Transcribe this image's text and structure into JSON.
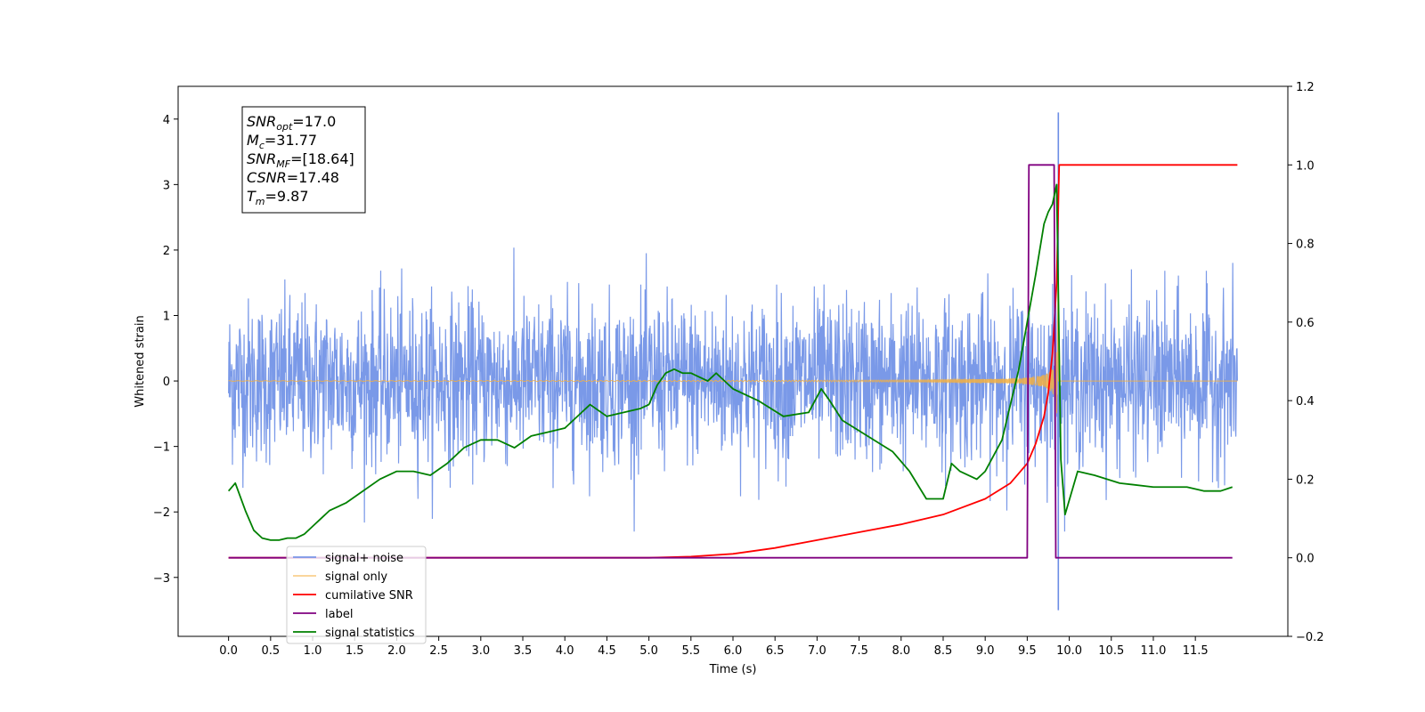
{
  "chart_data": {
    "type": "line",
    "title": "",
    "xlabel": "Time (s)",
    "ylabel": "Whitened strain",
    "xlim": [
      -0.6,
      12.6
    ],
    "ylim": [
      -3.9,
      4.5
    ],
    "y2lim": [
      -0.2,
      1.2
    ],
    "grid": false,
    "legend_location": "lower-left",
    "x_ticks": [
      "0.0",
      "0.5",
      "1.0",
      "1.5",
      "2.0",
      "2.5",
      "3.0",
      "3.5",
      "4.0",
      "4.5",
      "5.0",
      "5.5",
      "6.0",
      "6.5",
      "7.0",
      "7.5",
      "8.0",
      "8.5",
      "9.0",
      "9.5",
      "10.0",
      "10.5",
      "11.0",
      "11.5"
    ],
    "y_ticks": [
      "4",
      "3",
      "2",
      "1",
      "0",
      "−1",
      "−2",
      "−3"
    ],
    "y2_ticks": [
      "1.2",
      "1.0",
      "0.8",
      "0.6",
      "0.4",
      "0.2",
      "0.0",
      "−0.2"
    ],
    "annotation": {
      "lines": [
        {
          "base": "SNR",
          "sub": "opt",
          "value": "=17.0"
        },
        {
          "base": "M",
          "sub": "c",
          "value": "=31.77"
        },
        {
          "base": "SNR",
          "sub": "MF",
          "value": "=[18.64]"
        },
        {
          "base": "CSNR",
          "sub": "",
          "value": "=17.48"
        },
        {
          "base": "T",
          "sub": "m",
          "value": "=9.87"
        }
      ]
    },
    "colors": {
      "signal_noise": "#6b8ee6",
      "signal_only": "#f5b041",
      "cumulative_snr": "#ff0000",
      "label": "#800080",
      "signal_statistics": "#008000"
    },
    "series": [
      {
        "name": "signal+ noise",
        "axis": "left",
        "description_values": {
          "t_start": 0.0,
          "t_end": 12.0,
          "amplitude_envelope": 1.6,
          "max": 4.1,
          "min": -3.5
        }
      },
      {
        "name": "signal only",
        "axis": "left",
        "description_values": {
          "t_start": 0.0,
          "t_end": 12.0,
          "merger_time": 9.87,
          "peak_amplitude": 1.6
        }
      },
      {
        "name": "cumilative SNR",
        "axis": "right",
        "x": [
          0.0,
          5.0,
          5.5,
          6.0,
          6.5,
          7.0,
          7.5,
          8.0,
          8.5,
          9.0,
          9.3,
          9.5,
          9.6,
          9.7,
          9.75,
          9.8,
          9.85,
          9.87,
          9.88,
          12.0
        ],
        "y": [
          0.0,
          0.0,
          0.003,
          0.01,
          0.025,
          0.045,
          0.065,
          0.085,
          0.11,
          0.15,
          0.19,
          0.24,
          0.29,
          0.36,
          0.42,
          0.52,
          0.7,
          0.9,
          1.0,
          1.0
        ]
      },
      {
        "name": "label",
        "axis": "right",
        "x": [
          0.0,
          9.5,
          9.52,
          9.82,
          9.84,
          11.94
        ],
        "y": [
          0.0,
          0.0,
          1.0,
          1.0,
          0.0,
          0.0
        ]
      },
      {
        "name": "signal statistics",
        "axis": "right",
        "x": [
          0.0,
          0.08,
          0.2,
          0.3,
          0.4,
          0.5,
          0.6,
          0.7,
          0.8,
          0.9,
          1.0,
          1.1,
          1.2,
          1.4,
          1.6,
          1.8,
          2.0,
          2.2,
          2.4,
          2.6,
          2.8,
          3.0,
          3.2,
          3.4,
          3.6,
          3.8,
          4.0,
          4.2,
          4.3,
          4.5,
          4.7,
          4.9,
          5.0,
          5.1,
          5.2,
          5.3,
          5.4,
          5.5,
          5.6,
          5.7,
          5.8,
          6.0,
          6.3,
          6.6,
          6.9,
          7.05,
          7.15,
          7.3,
          7.6,
          7.9,
          8.1,
          8.3,
          8.5,
          8.6,
          8.7,
          8.9,
          9.0,
          9.2,
          9.4,
          9.6,
          9.7,
          9.75,
          9.8,
          9.85,
          9.9,
          9.95,
          10.1,
          10.3,
          10.6,
          11.0,
          11.4,
          11.6,
          11.8,
          11.94
        ],
        "y": [
          0.17,
          0.19,
          0.12,
          0.07,
          0.05,
          0.045,
          0.045,
          0.05,
          0.05,
          0.06,
          0.08,
          0.1,
          0.12,
          0.14,
          0.17,
          0.2,
          0.22,
          0.22,
          0.21,
          0.24,
          0.28,
          0.3,
          0.3,
          0.28,
          0.31,
          0.32,
          0.33,
          0.37,
          0.39,
          0.36,
          0.37,
          0.38,
          0.39,
          0.44,
          0.47,
          0.48,
          0.47,
          0.47,
          0.46,
          0.45,
          0.47,
          0.43,
          0.4,
          0.36,
          0.37,
          0.43,
          0.4,
          0.35,
          0.31,
          0.27,
          0.22,
          0.15,
          0.15,
          0.24,
          0.22,
          0.2,
          0.22,
          0.3,
          0.48,
          0.72,
          0.85,
          0.88,
          0.9,
          0.95,
          0.25,
          0.11,
          0.22,
          0.21,
          0.19,
          0.18,
          0.18,
          0.17,
          0.17,
          0.18
        ]
      }
    ]
  }
}
